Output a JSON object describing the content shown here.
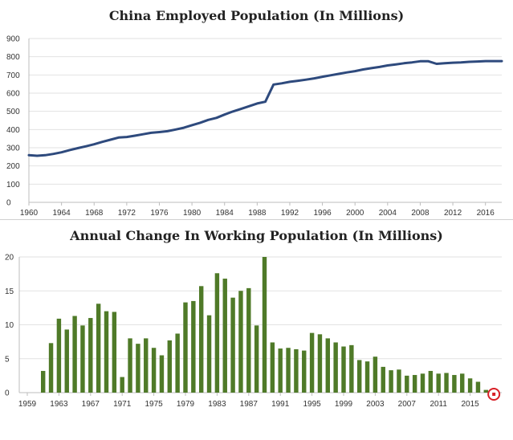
{
  "chart_data": [
    {
      "type": "line",
      "title": "China Employed Population (In Millions)",
      "xlabel": "",
      "ylabel": "",
      "xlim": [
        1960,
        2018
      ],
      "ylim": [
        0,
        900
      ],
      "y_ticks": [
        0,
        100,
        200,
        300,
        400,
        500,
        600,
        700,
        800,
        900
      ],
      "x_ticks": [
        1960,
        1964,
        1968,
        1972,
        1976,
        1980,
        1984,
        1988,
        1992,
        1996,
        2000,
        2004,
        2008,
        2012,
        2016
      ],
      "grid": "horizontal",
      "color": "#2e4a7d",
      "series": [
        {
          "name": "Employed Population",
          "x": [
            1960,
            1961,
            1962,
            1963,
            1964,
            1965,
            1966,
            1967,
            1968,
            1969,
            1970,
            1971,
            1972,
            1973,
            1974,
            1975,
            1976,
            1977,
            1978,
            1979,
            1980,
            1981,
            1982,
            1983,
            1984,
            1985,
            1986,
            1987,
            1988,
            1989,
            1990,
            1991,
            1992,
            1993,
            1994,
            1995,
            1996,
            1997,
            1998,
            1999,
            2000,
            2001,
            2002,
            2003,
            2004,
            2005,
            2006,
            2007,
            2008,
            2009,
            2010,
            2011,
            2012,
            2013,
            2014,
            2015,
            2016,
            2017,
            2018
          ],
          "values": [
            259,
            256,
            259,
            266,
            275,
            287,
            298,
            308,
            319,
            332,
            344,
            356,
            359,
            366,
            374,
            382,
            386,
            391,
            400,
            410,
            424,
            437,
            453,
            464,
            482,
            499,
            513,
            528,
            543,
            553,
            647,
            654,
            662,
            668,
            674,
            681,
            690,
            698,
            706,
            714,
            721,
            730,
            737,
            744,
            752,
            758,
            764,
            769,
            775,
            775,
            761,
            764,
            767,
            769,
            772,
            774,
            776,
            776,
            776
          ]
        }
      ]
    },
    {
      "type": "bar",
      "title": "Annual Change In Working Population (In Millions)",
      "xlabel": "",
      "ylabel": "",
      "xlim": [
        1959,
        2019
      ],
      "ylim": [
        0,
        20
      ],
      "y_ticks": [
        0,
        5,
        10,
        15,
        20
      ],
      "x_ticks": [
        1959,
        1963,
        1967,
        1971,
        1975,
        1979,
        1983,
        1987,
        1991,
        1995,
        1999,
        2003,
        2007,
        2011,
        2015
      ],
      "grid": "horizontal",
      "color": "#4f7a28",
      "highlight_color": "#d81f26",
      "highlight_year": 2018,
      "series": [
        {
          "name": "Annual Change",
          "x": [
            1961,
            1962,
            1963,
            1964,
            1965,
            1966,
            1967,
            1968,
            1969,
            1970,
            1971,
            1972,
            1973,
            1974,
            1975,
            1976,
            1977,
            1978,
            1979,
            1980,
            1981,
            1982,
            1983,
            1984,
            1985,
            1986,
            1987,
            1988,
            1989,
            1990,
            1991,
            1992,
            1993,
            1994,
            1995,
            1996,
            1997,
            1998,
            1999,
            2000,
            2001,
            2002,
            2003,
            2004,
            2005,
            2006,
            2007,
            2008,
            2009,
            2010,
            2011,
            2012,
            2013,
            2014,
            2015,
            2016,
            2017,
            2018
          ],
          "values": [
            3.2,
            7.3,
            10.9,
            9.3,
            11.3,
            9.9,
            11.0,
            13.1,
            12.0,
            11.9,
            2.3,
            8.0,
            7.2,
            8.0,
            6.6,
            5.5,
            7.7,
            8.7,
            13.3,
            13.5,
            15.7,
            11.4,
            17.6,
            16.8,
            14.0,
            15.0,
            15.4,
            9.9,
            20.0,
            7.4,
            6.5,
            6.6,
            6.4,
            6.2,
            8.8,
            8.6,
            8.0,
            7.4,
            6.8,
            7.0,
            4.8,
            4.6,
            5.3,
            3.8,
            3.3,
            3.4,
            2.5,
            2.6,
            2.8,
            3.2,
            2.8,
            2.9,
            2.6,
            2.8,
            2.1,
            1.6,
            0.4,
            -0.5
          ]
        }
      ]
    }
  ]
}
